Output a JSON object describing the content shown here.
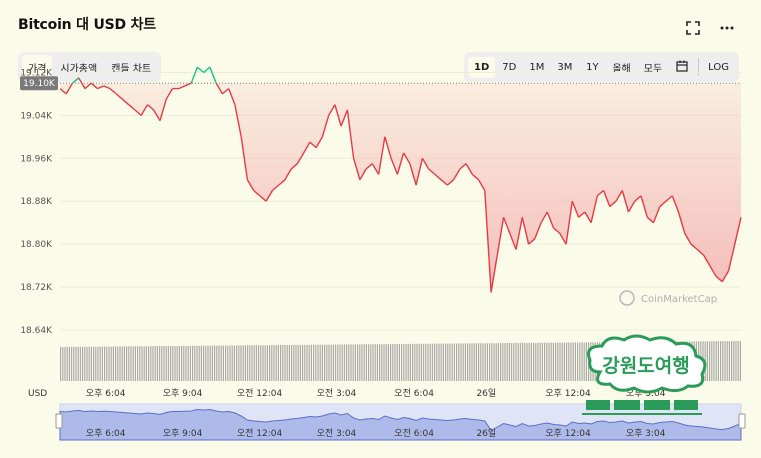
{
  "title": "Bitcoin 대 USD 차트",
  "tabs": [
    "가격",
    "시가총액",
    "캔들 차트"
  ],
  "active_tab": "가격",
  "ranges": [
    "1D",
    "7D",
    "1M",
    "3M",
    "1Y",
    "올해",
    "모두"
  ],
  "active_range": "1D",
  "log_label": "LOG",
  "currency_label": "USD",
  "watermark_text": "CoinMarketCap",
  "stamp_text": "강원도여행",
  "colors": {
    "up": "#16c784",
    "down": "#ea3943",
    "down_fill": "#f4b6b5",
    "volume": "#a9a9a9",
    "nav": "#aebbea"
  },
  "chart_data": {
    "type": "area",
    "ylim": [
      18.64,
      19.16
    ],
    "y_ticks": [
      "19.12K",
      "19.04K",
      "18.96K",
      "18.88K",
      "18.80K",
      "18.72K",
      "18.64K"
    ],
    "y_tick_values": [
      19.12,
      19.04,
      18.96,
      18.88,
      18.8,
      18.72,
      18.64
    ],
    "baseline_value": 19.1,
    "baseline_label": "19.10K",
    "x_ticks": [
      "오후 6:04",
      "오후 9:04",
      "오전 12:04",
      "오전 3:04",
      "오전 6:04",
      "26일",
      "오후 12:04",
      "오후 3:04"
    ],
    "x_tick_positions": [
      0.067,
      0.18,
      0.293,
      0.406,
      0.52,
      0.626,
      0.746,
      0.86
    ],
    "series": [
      {
        "values": [
          19.09,
          19.08,
          19.1,
          19.11,
          19.09,
          19.1,
          19.09,
          19.095,
          19.09,
          19.08,
          19.07,
          19.06,
          19.05,
          19.04,
          19.06,
          19.05,
          19.03,
          19.07,
          19.09,
          19.09,
          19.095,
          19.1,
          19.13,
          19.12,
          19.13,
          19.1,
          19.08,
          19.09,
          19.06,
          19.0,
          18.92,
          18.9,
          18.89,
          18.88,
          18.9,
          18.91,
          18.92,
          18.94,
          18.95,
          18.97,
          18.99,
          18.98,
          19.0,
          19.04,
          19.06,
          19.02,
          19.05,
          18.96,
          18.92,
          18.94,
          18.95,
          18.93,
          19.0,
          18.96,
          18.93,
          18.97,
          18.95,
          18.91,
          18.96,
          18.94,
          18.93,
          18.92,
          18.91,
          18.92,
          18.94,
          18.95,
          18.93,
          18.92,
          18.9,
          18.71,
          18.78,
          18.85,
          18.82,
          18.79,
          18.85,
          18.8,
          18.81,
          18.84,
          18.86,
          18.83,
          18.82,
          18.8,
          18.88,
          18.85,
          18.86,
          18.84,
          18.89,
          18.9,
          18.87,
          18.88,
          18.9,
          18.86,
          18.88,
          18.89,
          18.85,
          18.84,
          18.87,
          18.88,
          18.89,
          18.86,
          18.82,
          18.8,
          18.79,
          18.78,
          18.76,
          18.74,
          18.73,
          18.75,
          18.8,
          18.85
        ]
      }
    ],
    "volume_note": "volume bars shown along bottom"
  }
}
